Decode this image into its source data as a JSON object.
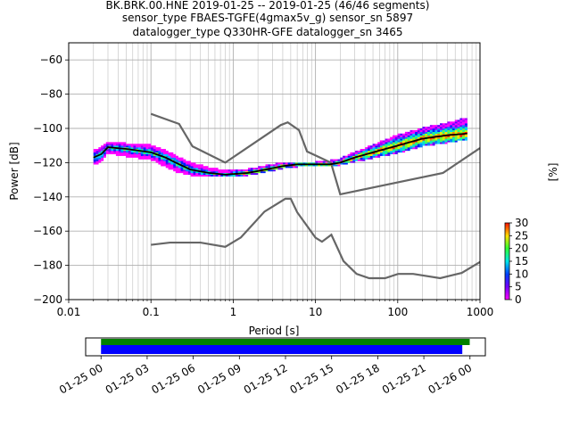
{
  "header": {
    "line1": "BK.BRK.00.HNE   2019-01-25 -- 2019-01-25  (46/46 segments)",
    "line2": "sensor_type FBAES-TGFE(4gmax5v_g) sensor_sn 5897",
    "line3": "datalogger_type Q330HR-GFE datalogger_sn 3465"
  },
  "chart_data": [
    {
      "type": "heatmap",
      "title": "BK.BRK.00.HNE   2019-01-25 -- 2019-01-25  (46/46 segments)",
      "xlabel": "Period [s]",
      "ylabel": "Power [dB]",
      "xscale": "log",
      "xlim": [
        0.01,
        1000
      ],
      "ylim": [
        -200,
        -50
      ],
      "x_ticks": [
        0.01,
        0.1,
        1,
        10,
        100,
        1000
      ],
      "x_tick_labels": [
        "0.01",
        "0.1",
        "1",
        "10",
        "100",
        "1000"
      ],
      "y_ticks": [
        -200,
        -180,
        -160,
        -140,
        -120,
        -100,
        -80,
        -60
      ],
      "y_tick_labels": [
        "−200",
        "−180",
        "−160",
        "−140",
        "−120",
        "−100",
        "−80",
        "−60"
      ],
      "grid": true,
      "colorbar": {
        "label": "[%]",
        "range": [
          0,
          30
        ],
        "ticks": [
          0,
          5,
          10,
          15,
          20,
          25,
          30
        ],
        "tick_labels": [
          "0",
          "5",
          "10",
          "15",
          "20",
          "25",
          "30"
        ]
      },
      "mean_curve": {
        "name": "mean",
        "color": "#000000",
        "points": [
          [
            0.02,
            -117
          ],
          [
            0.025,
            -115
          ],
          [
            0.03,
            -111
          ],
          [
            0.05,
            -112
          ],
          [
            0.1,
            -114
          ],
          [
            0.15,
            -117
          ],
          [
            0.2,
            -120
          ],
          [
            0.3,
            -124
          ],
          [
            0.5,
            -126
          ],
          [
            0.8,
            -127
          ],
          [
            1.5,
            -126
          ],
          [
            2.5,
            -124
          ],
          [
            4,
            -122
          ],
          [
            6,
            -121
          ],
          [
            10,
            -121
          ],
          [
            15,
            -121
          ],
          [
            20,
            -120
          ],
          [
            30,
            -117
          ],
          [
            50,
            -114
          ],
          [
            100,
            -110
          ],
          [
            200,
            -106
          ],
          [
            400,
            -104
          ],
          [
            700,
            -103
          ]
        ]
      },
      "psd_band": {
        "upper": [
          [
            0.02,
            -113
          ],
          [
            0.025,
            -111
          ],
          [
            0.03,
            -108
          ],
          [
            0.05,
            -109
          ],
          [
            0.1,
            -110
          ],
          [
            0.15,
            -113
          ],
          [
            0.2,
            -116
          ],
          [
            0.3,
            -120
          ],
          [
            0.5,
            -123
          ],
          [
            0.8,
            -125
          ],
          [
            1.5,
            -124
          ],
          [
            2.5,
            -122
          ],
          [
            4,
            -120
          ],
          [
            6,
            -120
          ],
          [
            10,
            -120
          ],
          [
            15,
            -119
          ],
          [
            20,
            -118
          ],
          [
            30,
            -114
          ],
          [
            50,
            -110
          ],
          [
            100,
            -104
          ],
          [
            200,
            -100
          ],
          [
            400,
            -97
          ],
          [
            700,
            -94
          ]
        ],
        "lower": [
          [
            0.02,
            -121
          ],
          [
            0.025,
            -119
          ],
          [
            0.03,
            -114
          ],
          [
            0.05,
            -116
          ],
          [
            0.1,
            -118
          ],
          [
            0.15,
            -122
          ],
          [
            0.2,
            -125
          ],
          [
            0.3,
            -127
          ],
          [
            0.5,
            -128
          ],
          [
            0.8,
            -128
          ],
          [
            1.5,
            -127
          ],
          [
            2.5,
            -125
          ],
          [
            4,
            -123
          ],
          [
            6,
            -122
          ],
          [
            10,
            -122
          ],
          [
            15,
            -122
          ],
          [
            20,
            -121
          ],
          [
            30,
            -119
          ],
          [
            50,
            -117
          ],
          [
            100,
            -114
          ],
          [
            200,
            -110
          ],
          [
            400,
            -108
          ],
          [
            700,
            -106
          ]
        ]
      },
      "noise_models": [
        {
          "name": "high",
          "color": "#666666",
          "points": [
            [
              0.1,
              -91.5
            ],
            [
              0.22,
              -97.4
            ],
            [
              0.32,
              -110.5
            ],
            [
              0.8,
              -120
            ],
            [
              3.8,
              -98
            ],
            [
              4.6,
              -96.5
            ],
            [
              6.3,
              -101
            ],
            [
              7.9,
              -113.5
            ],
            [
              15.4,
              -120
            ],
            [
              20,
              -138.5
            ],
            [
              354.8,
              -126
            ],
            [
              1000,
              -111.5
            ]
          ]
        },
        {
          "name": "low",
          "color": "#666666",
          "points": [
            [
              0.1,
              -168
            ],
            [
              0.17,
              -166.7
            ],
            [
              0.4,
              -166.7
            ],
            [
              0.8,
              -169.2
            ],
            [
              1.24,
              -163.7
            ],
            [
              2.4,
              -148.6
            ],
            [
              4.3,
              -141.1
            ],
            [
              5,
              -141.1
            ],
            [
              6,
              -149
            ],
            [
              10,
              -163.8
            ],
            [
              12,
              -166.2
            ],
            [
              15.6,
              -162.1
            ],
            [
              21.9,
              -177.5
            ],
            [
              31.6,
              -185
            ],
            [
              45,
              -187.5
            ],
            [
              70,
              -187.5
            ],
            [
              101,
              -185
            ],
            [
              154,
              -185
            ],
            [
              328,
              -187.5
            ],
            [
              600,
              -184.4
            ],
            [
              1000,
              -178
            ]
          ]
        }
      ]
    },
    {
      "type": "bar",
      "title": "",
      "orientation": "horizontal",
      "xlim": [
        "2019-01-24 23:00",
        "2019-01-26 01:00"
      ],
      "x_ticks": [
        "2019-01-25 00:00",
        "2019-01-25 03:00",
        "2019-01-25 06:00",
        "2019-01-25 09:00",
        "2019-01-25 12:00",
        "2019-01-25 15:00",
        "2019-01-25 18:00",
        "2019-01-25 21:00",
        "2019-01-26 00:00"
      ],
      "x_tick_labels": [
        "01-25 00",
        "01-25 03",
        "01-25 06",
        "01-25 09",
        "01-25 12",
        "01-25 15",
        "01-25 18",
        "01-25 21",
        "01-26 00"
      ],
      "bars": [
        {
          "name": "data",
          "color": "#008000",
          "start": "2019-01-25 00:00",
          "end": "2019-01-25 23:59"
        },
        {
          "name": "used",
          "color": "#0000ff",
          "start": "2019-01-25 00:00",
          "end": "2019-01-25 23:30"
        }
      ]
    }
  ]
}
